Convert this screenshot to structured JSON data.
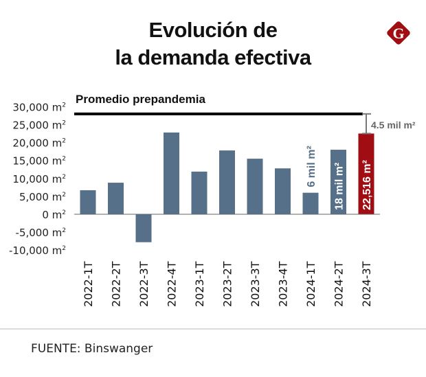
{
  "title_line1": "Evolución de",
  "title_line2": "la demanda efectiva",
  "logo_letter": "G",
  "source": "FUENTE: Binswanger",
  "colors": {
    "bar": "#56708a",
    "highlight": "#a00d12",
    "average_line": "#000000",
    "bracket": "#777777",
    "logo": "#a00d12"
  },
  "chart_data": {
    "type": "bar",
    "categories": [
      "2022-1T",
      "2022-2T",
      "2022-3T",
      "2022-4T",
      "2023-1T",
      "2023-2T",
      "2023-3T",
      "2023-4T",
      "2024-1T",
      "2024-2T",
      "2024-3T"
    ],
    "values": [
      6700,
      8800,
      -7800,
      22800,
      11900,
      17800,
      15500,
      12800,
      6000,
      18000,
      22516
    ],
    "highlight_index": 10,
    "unit": "m²",
    "ylim": [
      -10000,
      30000
    ],
    "yticks": [
      30000,
      25000,
      20000,
      15000,
      10000,
      5000,
      0,
      -5000,
      -10000
    ],
    "ytick_labels": [
      "30,000 m²",
      "25,000 m²",
      "20,000 m²",
      "15,000 m²",
      "10,000 m²",
      "5,000 m²",
      "0 m²",
      "-5,000 m²",
      "-10,000 m²"
    ],
    "grid": false,
    "reference_line": {
      "label": "Promedio prepandemia",
      "value": 28000
    },
    "gap_annotation": "4.5 mil m²",
    "bar_labels": [
      {
        "index": 8,
        "text": "6 mil m²",
        "position": "above"
      },
      {
        "index": 9,
        "text": "18 mil m²",
        "position": "inside"
      },
      {
        "index": 10,
        "text": "22,516 m²",
        "position": "inside"
      }
    ]
  }
}
